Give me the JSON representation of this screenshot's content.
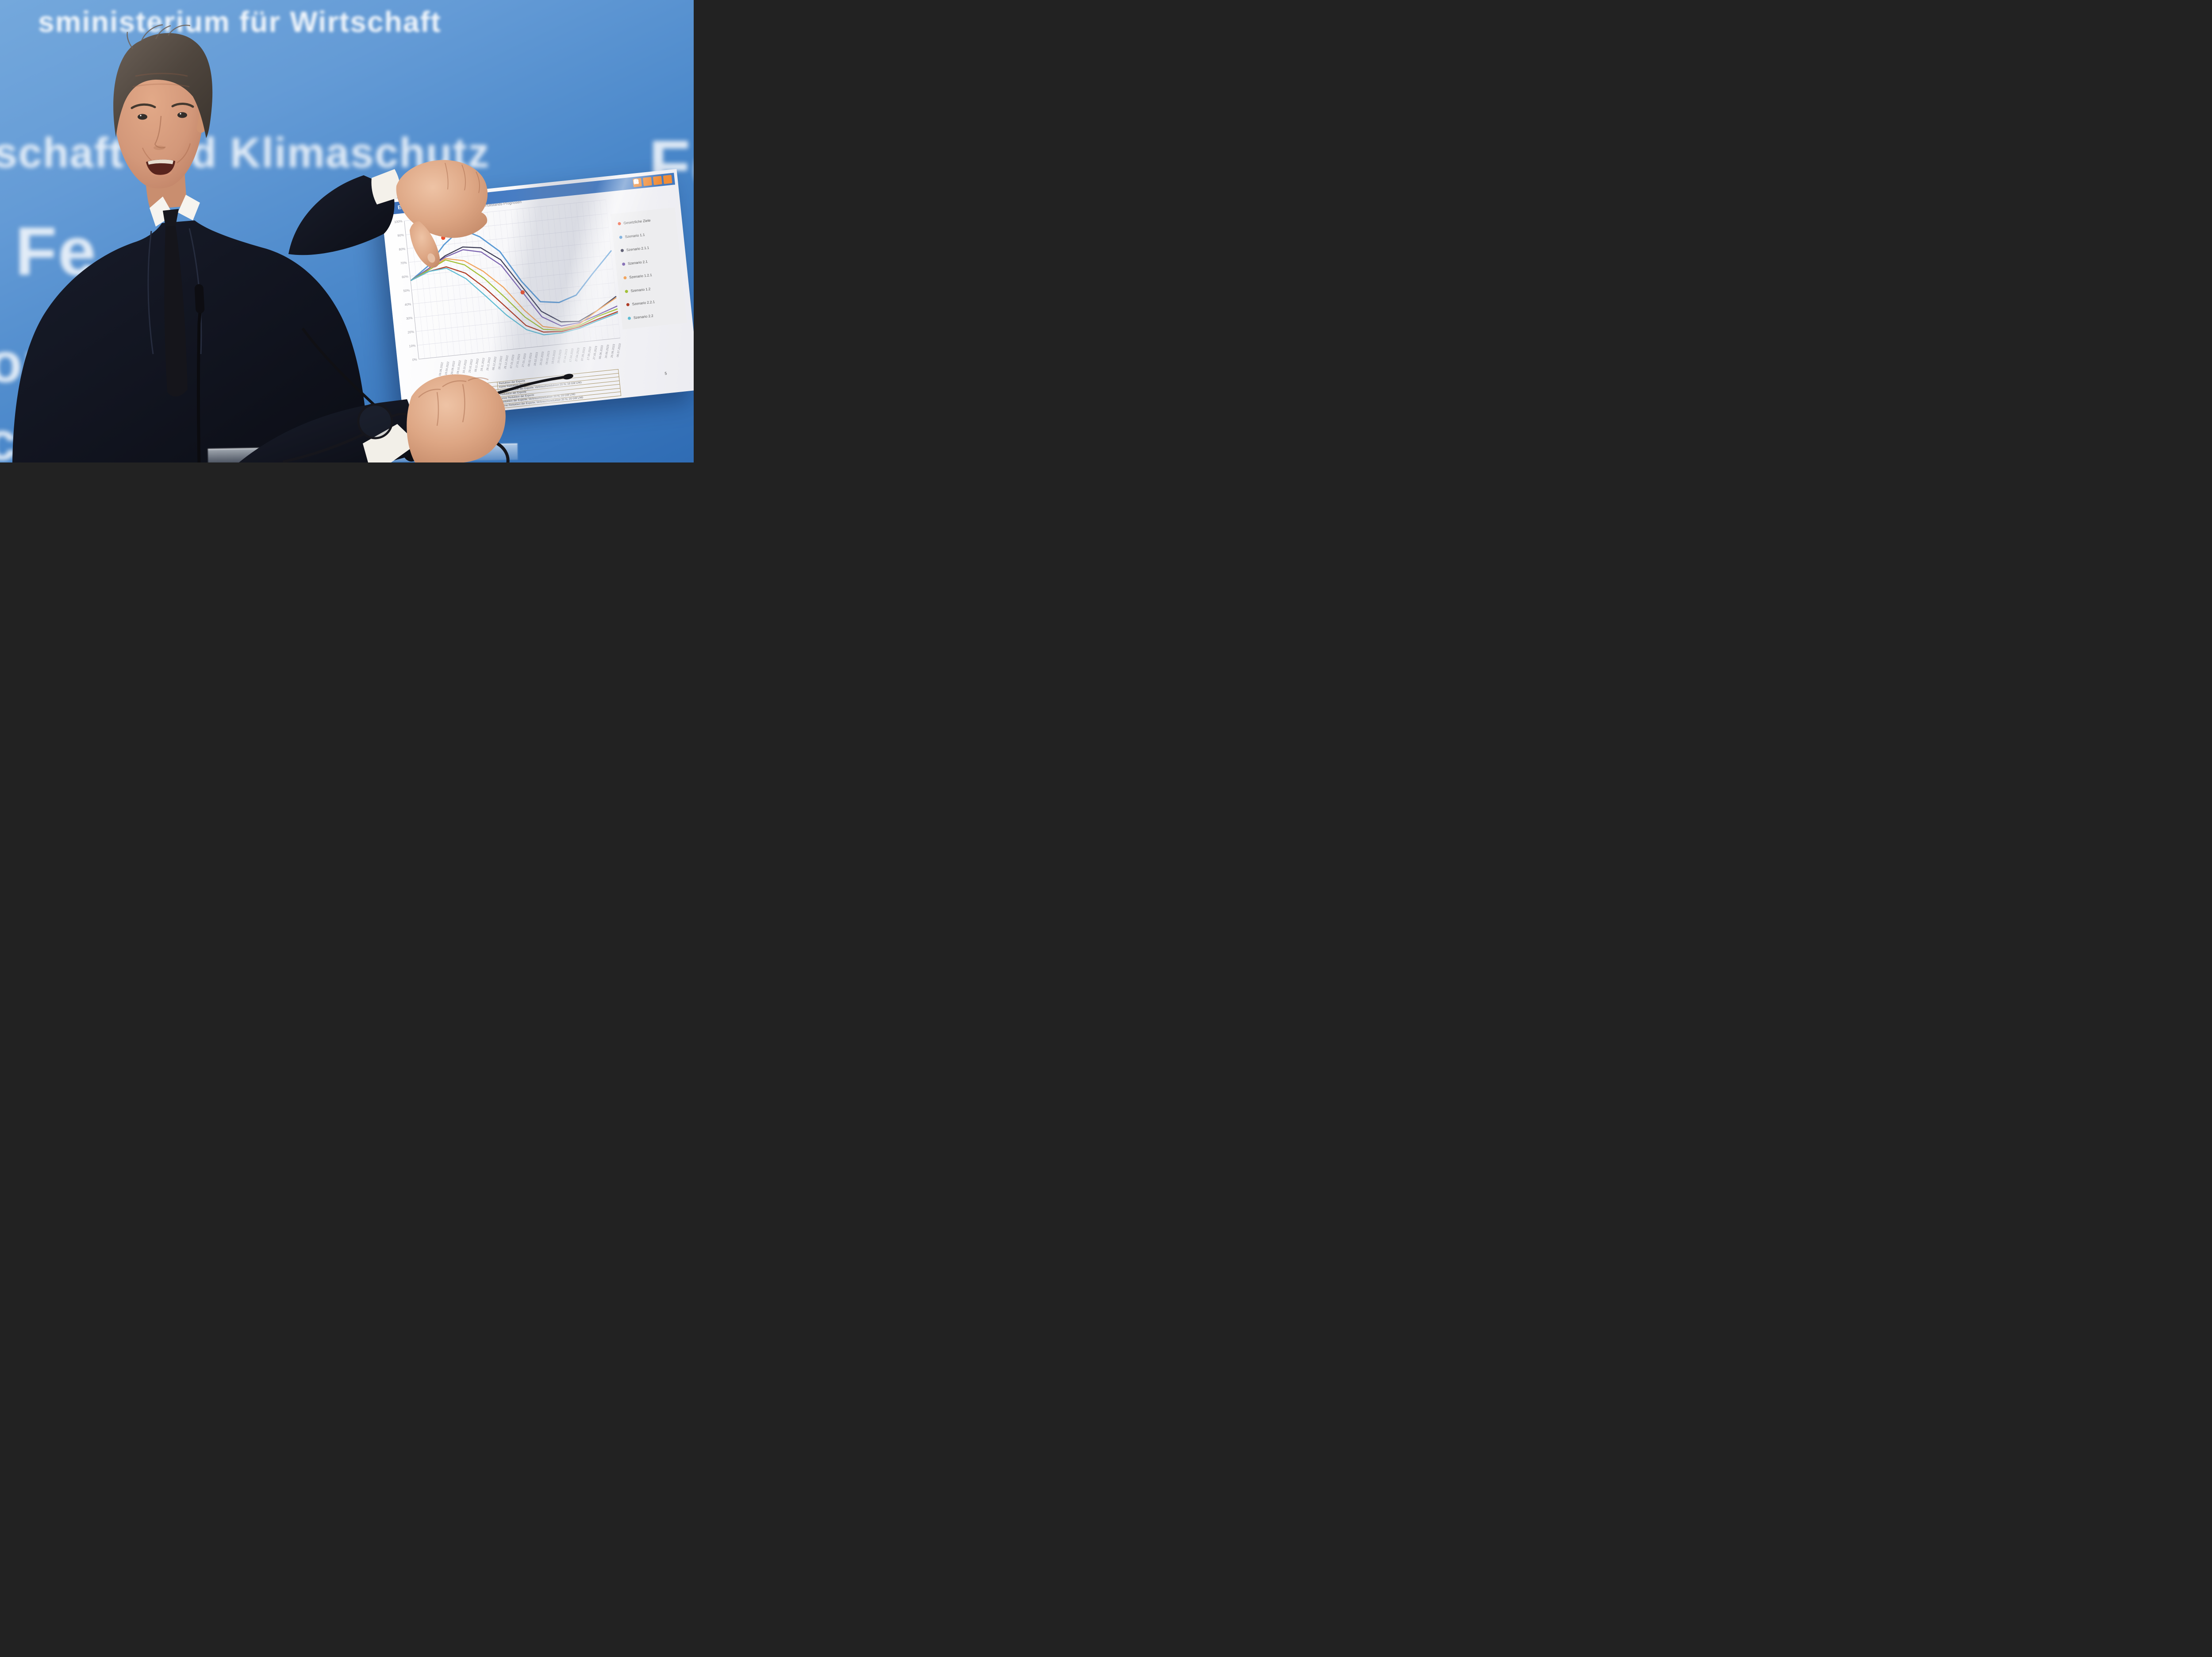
{
  "wall": {
    "fragments": [
      {
        "text": "sministerium für Wirtschaft"
      },
      {
        "text": "schaft und Klimaschutz"
      },
      {
        "text": "Fe"
      },
      {
        "text": "Fe"
      },
      {
        "text": "or"
      },
      {
        "text": "ctio"
      }
    ]
  },
  "slide": {
    "header": {
      "title": "Ergebnisse Speicherfüllstände",
      "accent_color": "#4379C0",
      "icon_color": "#EF8C37",
      "icons": [
        "plug-flame-icon",
        "phone-icon",
        "envelope-icon",
        "train-icon"
      ]
    },
    "page_number": "5",
    "table": {
      "rows": [
        {
          "label": "",
          "description": "Reduktion der Exporte"
        },
        {
          "label": "",
          "description": "Keine Reduktion der Exporte"
        },
        {
          "label": "",
          "description": "Keine Reduktion der Exporte; Verbrauchsreduktion 20 %; 16 GW LNG"
        },
        {
          "label": "",
          "description": "Reduktion der Exporte"
        },
        {
          "label": "",
          "description": "Keine Reduktion der Exporte"
        },
        {
          "label": "",
          "description": "Reduktion der Exporte; Verbrauchsreduktion 20 %; 16 GW LNG"
        },
        {
          "label": "",
          "description": "Keine Reduktion der Exporte; Verbrauchsreduktion 20 %; 16 GW LNG"
        }
      ]
    }
  },
  "chart_data": {
    "type": "line",
    "title": "Speicherfüllstands-Prognosen",
    "xlabel": "",
    "ylabel": "",
    "ylim": [
      0,
      100
    ],
    "grid": true,
    "legend_position": "right",
    "y_ticks": [
      "100%",
      "90%",
      "80%",
      "70%",
      "60%",
      "50%",
      "40%",
      "30%",
      "20%",
      "10%",
      "0%"
    ],
    "x_range": [
      "31.07.2022",
      "06.07.2023"
    ],
    "x_tick_labels": [
      "09.09.2022",
      "19.09.2022",
      "29.09.2022",
      "09.10.2022",
      "19.10.2022",
      "29.10.2022",
      "08.11.2022",
      "18.11.2022",
      "28.11.2022",
      "08.12.2022",
      "18.12.2022",
      "28.12.2022",
      "07.01.2023",
      "17.01.2023",
      "27.01.2023",
      "06.02.2023",
      "16.02.2023",
      "26.02.2023",
      "08.03.2023",
      "18.03.2023",
      "28.03.2023",
      "07.04.2023",
      "17.04.2023",
      "27.04.2023",
      "07.05.2023",
      "17.05.2023",
      "27.05.2023",
      "06.06.2023",
      "16.06.2023",
      "26.06.2023",
      "06.07.2023"
    ],
    "sample_dates": [
      "01.08.2022",
      "01.09.2022",
      "01.10.2022",
      "01.11.2022",
      "01.12.2022",
      "01.01.2023",
      "01.02.2023",
      "01.03.2023",
      "01.04.2023",
      "01.05.2023",
      "01.06.2023",
      "06.07.2023"
    ],
    "series": [
      {
        "name": "Szenario 1.1",
        "color": "#5B9BD5",
        "values": [
          57,
          66,
          80,
          90,
          83,
          71,
          48,
          32,
          30,
          34,
          48,
          63
        ]
      },
      {
        "name": "Szenario 2.1.1",
        "color": "#3F3F58",
        "values": [
          57,
          64,
          72,
          77,
          75,
          65,
          44,
          25,
          16,
          15,
          21,
          30
        ]
      },
      {
        "name": "Szenario 2.1",
        "color": "#7C64B0",
        "values": [
          57,
          64,
          71,
          75,
          72,
          61,
          40,
          21,
          13,
          14,
          18,
          23
        ]
      },
      {
        "name": "Szenario 1.2.1",
        "color": "#F2A45C",
        "values": [
          57,
          63,
          70,
          67,
          58,
          45,
          27,
          14,
          11,
          13,
          21,
          29
        ]
      },
      {
        "name": "Szenario 1.2",
        "color": "#A2C037",
        "values": [
          57,
          63,
          69,
          64,
          53,
          38,
          22,
          12,
          10,
          12,
          17,
          21
        ]
      },
      {
        "name": "Szenario 2.2.1",
        "color": "#AE3B25",
        "values": [
          57,
          62,
          64,
          58,
          46,
          31,
          16,
          10,
          9,
          11,
          15,
          19
        ]
      },
      {
        "name": "Szenario 2.2",
        "color": "#5FBCD3",
        "values": [
          57,
          62,
          63,
          54,
          40,
          25,
          13,
          8,
          8,
          10,
          14,
          18
        ]
      }
    ],
    "targets": {
      "name": "Gesetzliche Ziele",
      "color": "#ED4F2B",
      "points": [
        {
          "date": "01.10.2022",
          "value": 85
        },
        {
          "date": "01.11.2022",
          "value": 95
        },
        {
          "date": "01.02.2023",
          "value": 40
        }
      ]
    },
    "legend": [
      "Gesetzliche Ziele",
      "Szenario 1.1",
      "Szenario 2.1.1",
      "Szenario 2.1",
      "Szenario 1.2.1",
      "Szenario 1.2",
      "Szenario 2.2.1",
      "Szenario 2.2"
    ]
  }
}
